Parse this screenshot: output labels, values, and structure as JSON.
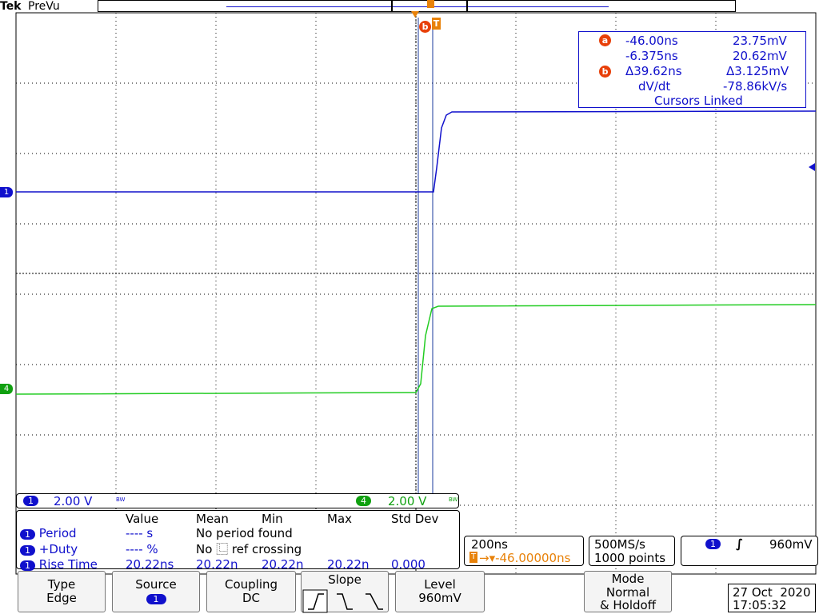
{
  "header": {
    "brand": "Tek",
    "mode": "PreVu"
  },
  "cursor_readout": {
    "a_time": "-46.00ns",
    "a_volt": "23.75mV",
    "b_time": "-6.375ns",
    "b_volt": "20.62mV",
    "delta_time": "Δ39.62ns",
    "delta_volt": "Δ3.125mV",
    "dvdt_label": "dV/dt",
    "dvdt_value": "-78.86kV/s",
    "linked": "Cursors Linked",
    "a_label": "a",
    "b_label": "b"
  },
  "channels": {
    "ch1_marker": "1",
    "ch4_marker": "4",
    "ch1_scale_badge": "1",
    "ch1_scale": "2.00 V",
    "ch1_bw": "BW",
    "ch4_scale_badge": "4",
    "ch4_scale": "2.00 V",
    "ch4_bw": "BW",
    "ch1_color": "#1010cc",
    "ch4_color": "#10a010"
  },
  "measurements": {
    "headers": [
      "Value",
      "Mean",
      "Min",
      "Max",
      "Std Dev"
    ],
    "rows": [
      {
        "ch": "1",
        "name": "Period",
        "value": "---- s",
        "mean": "No period found",
        "min": "",
        "max": "",
        "std": ""
      },
      {
        "ch": "1",
        "name": "+Duty",
        "value": "---- %",
        "mean": "No ⿺ ref crossing",
        "min": "",
        "max": "",
        "std": ""
      },
      {
        "ch": "1",
        "name": "Rise Time",
        "value": "20.22ns",
        "mean": "20.22n",
        "min": "20.22n",
        "max": "20.22n",
        "std": "0.000"
      }
    ]
  },
  "timebase": {
    "scale": "200ns",
    "position": "→▾-46.00000ns",
    "trigger_glyph": "T"
  },
  "acquisition": {
    "rate": "500MS/s",
    "points": "1000 points"
  },
  "trigger_status": {
    "ch": "1",
    "slope_glyph": "∫",
    "level": "960mV"
  },
  "menu": {
    "type_label": "Type",
    "type_value": "Edge",
    "source_label": "Source",
    "source_value": "1",
    "coupling_label": "Coupling",
    "coupling_value": "DC",
    "slope_label": "Slope",
    "level_label": "Level",
    "level_value": "960mV",
    "mode_label": "Mode",
    "mode_value1": "Normal",
    "mode_value2": "& Holdoff"
  },
  "datetime": {
    "date": "27 Oct  2020",
    "time": "17:05:32"
  },
  "markers": {
    "trigger_a": "b",
    "trigger_t": "T",
    "trigger_pos": "T"
  }
}
